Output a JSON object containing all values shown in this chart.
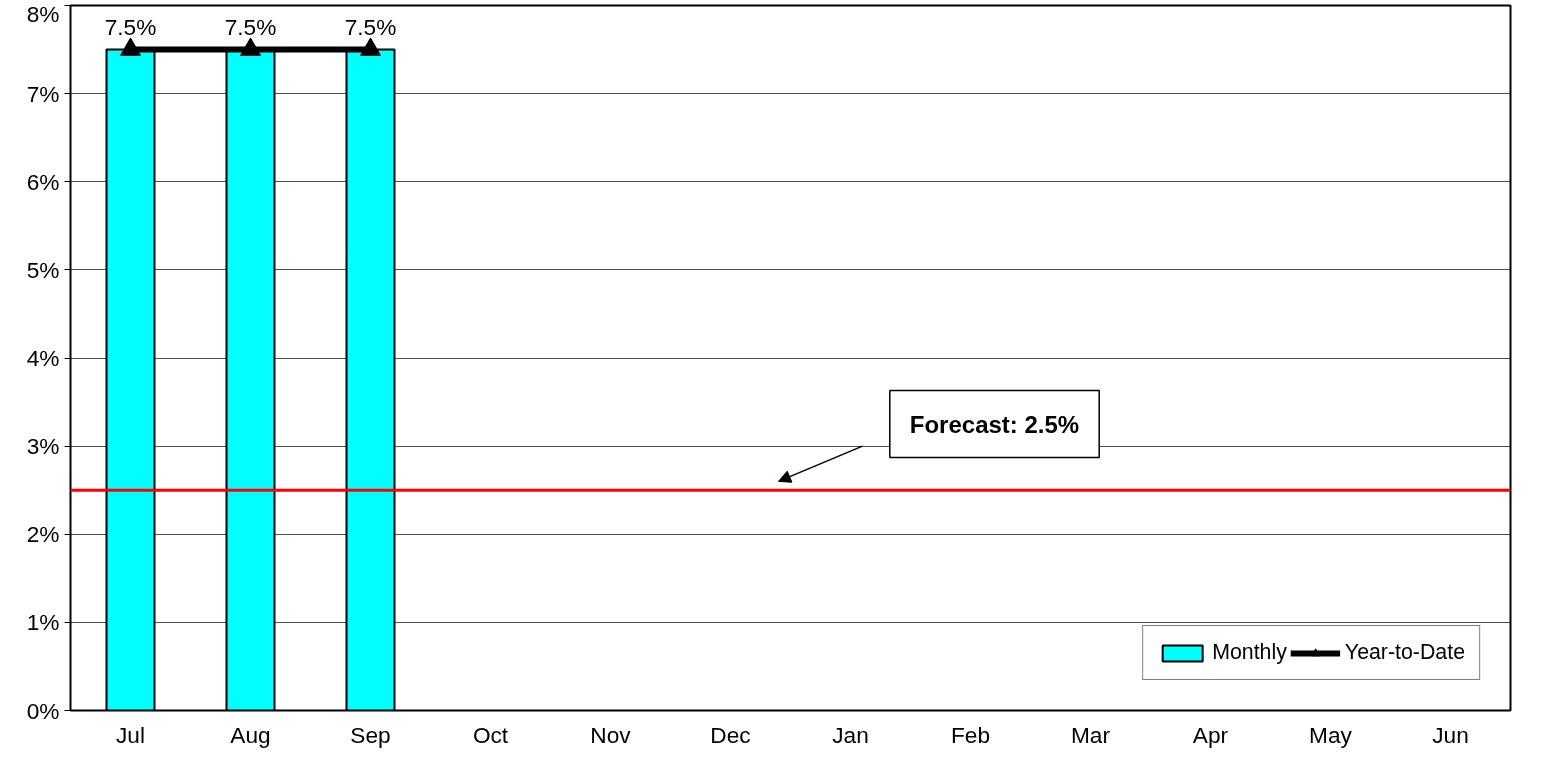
{
  "chart_data": {
    "type": "bar",
    "categories": [
      "Jul",
      "Aug",
      "Sep",
      "Oct",
      "Nov",
      "Dec",
      "Jan",
      "Feb",
      "Mar",
      "Apr",
      "May",
      "Jun"
    ],
    "series": [
      {
        "name": "Monthly",
        "color": "#00ffff",
        "values": [
          7.5,
          7.5,
          7.5,
          null,
          null,
          null,
          null,
          null,
          null,
          null,
          null,
          null
        ]
      },
      {
        "name": "Year-to-Date",
        "type": "line",
        "color": "#000000",
        "marker": "triangle",
        "values": [
          7.5,
          7.5,
          7.5,
          null,
          null,
          null,
          null,
          null,
          null,
          null,
          null,
          null
        ],
        "value_labels": [
          "7.5%",
          "7.5%",
          "7.5%",
          null,
          null,
          null,
          null,
          null,
          null,
          null,
          null,
          null
        ]
      }
    ],
    "ylim": [
      0,
      8
    ],
    "yticks": [
      {
        "value": 0,
        "label": "0%"
      },
      {
        "value": 1,
        "label": "1%"
      },
      {
        "value": 2,
        "label": "2%"
      },
      {
        "value": 3,
        "label": "3%"
      },
      {
        "value": 4,
        "label": "4%"
      },
      {
        "value": 5,
        "label": "5%"
      },
      {
        "value": 6,
        "label": "6%"
      },
      {
        "value": 7,
        "label": "7%"
      },
      {
        "value": 8,
        "label": "8%"
      }
    ],
    "ref_lines": [
      {
        "axis": "y",
        "value": 2.5,
        "label": "Forecast: 2.5%",
        "color": "#ff0000"
      }
    ],
    "grid": "y",
    "legend": "bottom right"
  }
}
